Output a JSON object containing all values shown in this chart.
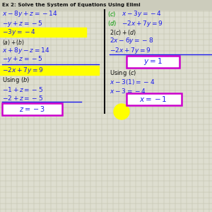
{
  "bg_color": "#deded0",
  "grid_color": "#c0c0aa",
  "blue": "#1a1aee",
  "green": "#009900",
  "magenta": "#cc00cc",
  "black": "#111111",
  "yellow": "#ffff00",
  "white": "#ffffff",
  "figsize": [
    3.0,
    3.0
  ],
  "dpi": 100,
  "title": "Ex 2: Solve the System of Equations Using Elimi"
}
